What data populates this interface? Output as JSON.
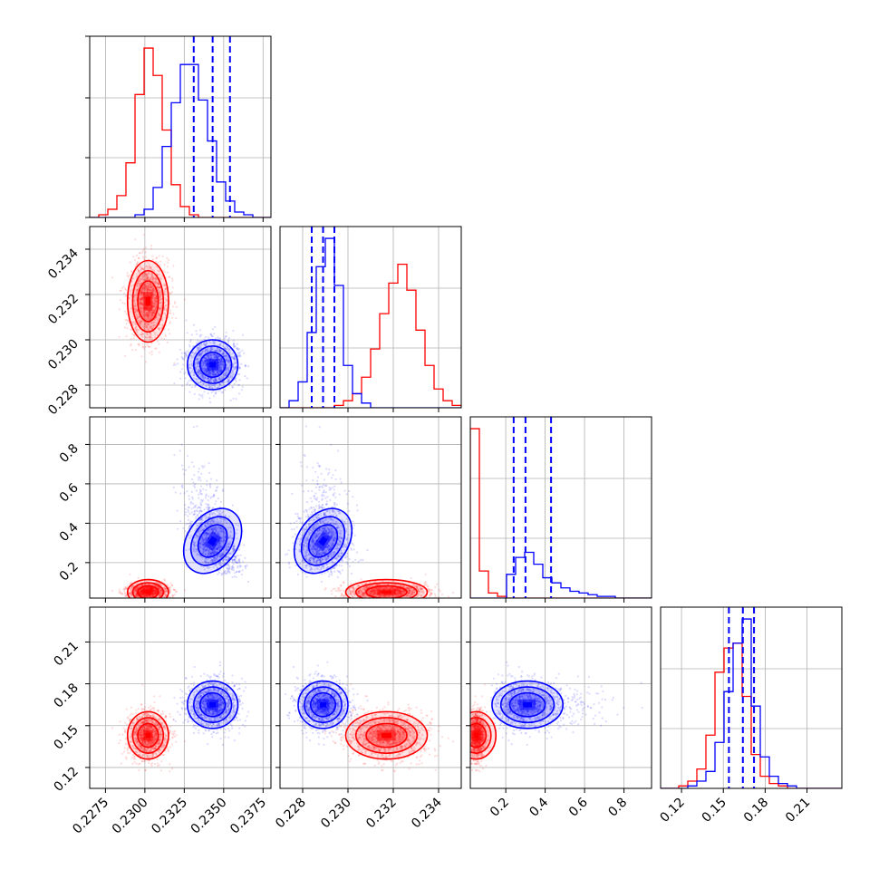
{
  "chart_data": {
    "type": "corner",
    "grid": true,
    "colors": {
      "red": "#ff0000",
      "blue": "#0000ff"
    },
    "parameters": [
      {
        "range": [
          0.2265,
          0.238
        ],
        "ticks": [
          "0.2275",
          "0.2300",
          "0.2325",
          "0.2350",
          "0.2375"
        ]
      },
      {
        "range": [
          0.227,
          0.235
        ],
        "ticks": [
          "0.228",
          "0.230",
          "0.232",
          "0.234"
        ]
      },
      {
        "range": [
          0.02,
          0.94
        ],
        "ticks": [
          "0.2",
          "0.4",
          "0.6",
          "0.8"
        ]
      },
      {
        "range": [
          0.105,
          0.235
        ],
        "ticks": [
          "0.12",
          "0.15",
          "0.18",
          "0.21"
        ]
      }
    ],
    "series": [
      {
        "color": "#ff0000",
        "mean": [
          0.2302,
          0.2317,
          0.045,
          0.143
        ],
        "std": [
          0.00065,
          0.0009,
          0.02,
          0.0085
        ],
        "skew_right": [
          false,
          false,
          true,
          false
        ],
        "histograms": [
          [
            0,
            1,
            3,
            8,
            20,
            45,
            62,
            52,
            32,
            12,
            4,
            1,
            0,
            0,
            0,
            0,
            0,
            0,
            0,
            0
          ],
          [
            0,
            0,
            0,
            0,
            0,
            0,
            1,
            3,
            6,
            13,
            25,
            40,
            53,
            61,
            50,
            33,
            18,
            8,
            3,
            1
          ],
          [
            100,
            16,
            3,
            1,
            0,
            0,
            0,
            0,
            0,
            0,
            0,
            0,
            0,
            0,
            0,
            0,
            0,
            0,
            0,
            0
          ],
          [
            0,
            0,
            1,
            3,
            8,
            22,
            48,
            58,
            60,
            38,
            14,
            5,
            2,
            1,
            0,
            0,
            0,
            0,
            0,
            0
          ]
        ]
      },
      {
        "color": "#0000ff",
        "mean": [
          0.2343,
          0.2289,
          0.31,
          0.165
        ],
        "std": [
          0.0008,
          0.00055,
          0.095,
          0.0085
        ],
        "skew_right": [
          false,
          false,
          true,
          false
        ],
        "histograms": [
          [
            0,
            0,
            0,
            0,
            0,
            1,
            3,
            11,
            26,
            42,
            56,
            56,
            43,
            28,
            13,
            6,
            2,
            1,
            0,
            0
          ],
          [
            0,
            3,
            11,
            32,
            60,
            72,
            52,
            18,
            6,
            2,
            0,
            0,
            0,
            0,
            0,
            0,
            0,
            0,
            0,
            0
          ],
          [
            0,
            0,
            0,
            0,
            14,
            24,
            27,
            20,
            12,
            9,
            6,
            4,
            3,
            2,
            1,
            1,
            0,
            0,
            0,
            0
          ],
          [
            0,
            0,
            0,
            1,
            3,
            7,
            19,
            40,
            60,
            70,
            34,
            13,
            5,
            2,
            1,
            0,
            0,
            0,
            0,
            0
          ]
        ],
        "quantiles": [
          [
            0.2331,
            0.2343,
            0.2354
          ],
          [
            0.2284,
            0.2289,
            0.2294
          ],
          [
            0.24,
            0.3,
            0.43
          ],
          [
            0.154,
            0.164,
            0.172
          ]
        ]
      }
    ]
  }
}
